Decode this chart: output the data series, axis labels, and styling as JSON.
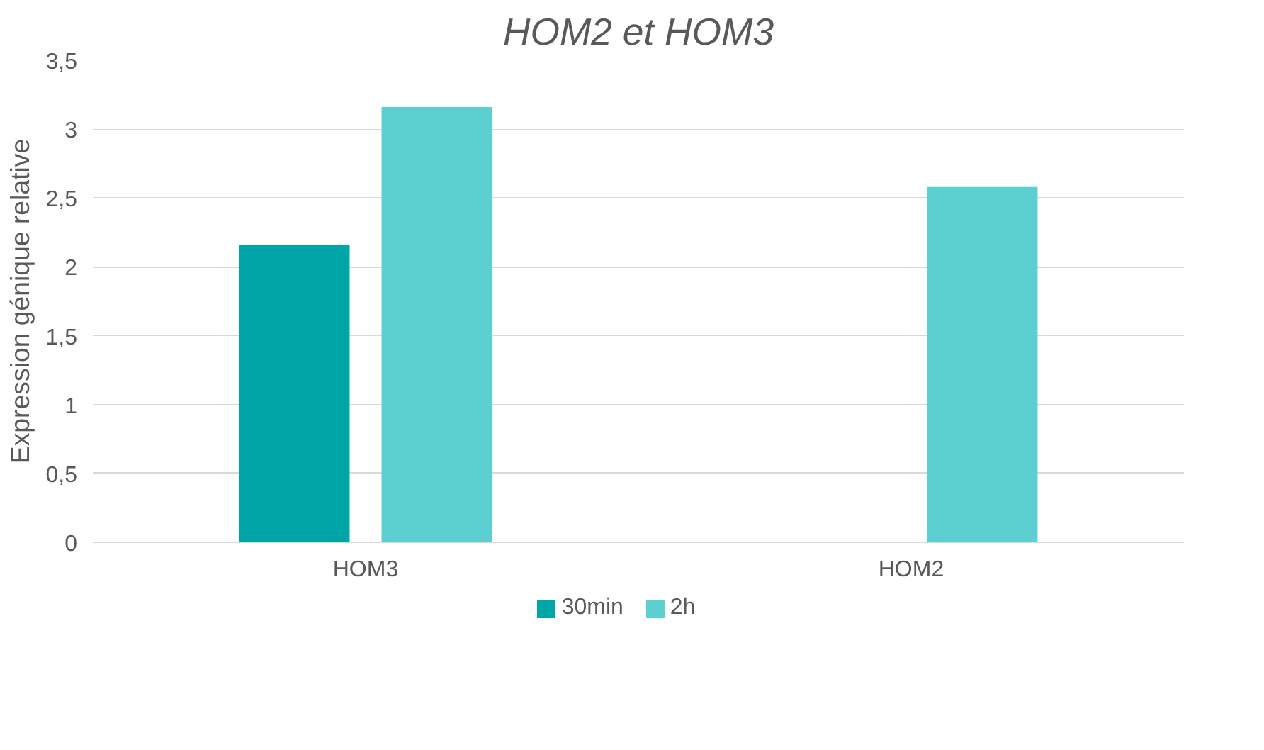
{
  "chart_data": {
    "type": "bar",
    "title": "HOM2 et HOM3",
    "ylabel": "Expression génique relative",
    "categories": [
      "HOM3",
      "HOM2"
    ],
    "series": [
      {
        "name": "30min",
        "color": "#00a5a8",
        "values": [
          2.16,
          null
        ]
      },
      {
        "name": "2h",
        "color": "#5cd0d0",
        "values": [
          3.16,
          2.58
        ]
      }
    ],
    "ylim": [
      0,
      3.5
    ],
    "yticks": [
      {
        "value": 0,
        "label": "0"
      },
      {
        "value": 0.5,
        "label": "0,5"
      },
      {
        "value": 1,
        "label": "1"
      },
      {
        "value": 1.5,
        "label": "1,5"
      },
      {
        "value": 2,
        "label": "2"
      },
      {
        "value": 2.5,
        "label": "2,5"
      },
      {
        "value": 3,
        "label": "3"
      },
      {
        "value": 3.5,
        "label": "3,5"
      }
    ],
    "grid": "y",
    "legend": "bottom"
  }
}
